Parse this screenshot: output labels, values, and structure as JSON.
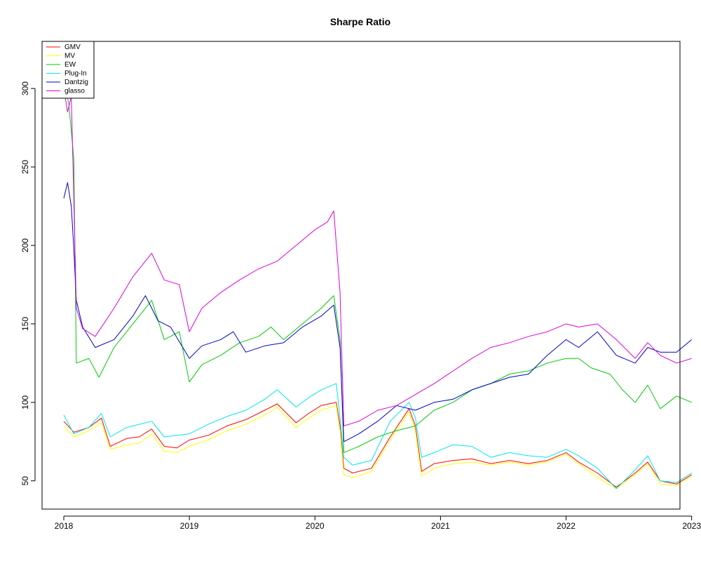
{
  "chart_data": {
    "type": "line",
    "title": "Sharpe Ratio",
    "xlabel": "",
    "ylabel": "",
    "xlim": [
      2018.0,
      2023.08
    ],
    "ylim": [
      32,
      330
    ],
    "x_ticks": [
      {
        "value": 2018,
        "label": "2018"
      },
      {
        "value": 2019,
        "label": "2019"
      },
      {
        "value": 2020,
        "label": "2020"
      },
      {
        "value": 2021,
        "label": "2021"
      },
      {
        "value": 2022,
        "label": "2022"
      },
      {
        "value": 2023,
        "label": "2023"
      }
    ],
    "y_ticks": [
      {
        "value": 50,
        "label": "50"
      },
      {
        "value": 100,
        "label": "100"
      },
      {
        "value": 150,
        "label": "150"
      },
      {
        "value": 200,
        "label": "200"
      },
      {
        "value": 250,
        "label": "250"
      },
      {
        "value": 300,
        "label": "300"
      }
    ],
    "grid": false,
    "legend": {
      "position": "top-left"
    },
    "series": [
      {
        "name": "GMV",
        "color": "#FF0000",
        "points": [
          [
            2018.0,
            88
          ],
          [
            2018.08,
            81
          ],
          [
            2018.2,
            84
          ],
          [
            2018.3,
            90
          ],
          [
            2018.37,
            72
          ],
          [
            2018.5,
            77
          ],
          [
            2018.6,
            78
          ],
          [
            2018.7,
            83
          ],
          [
            2018.8,
            72
          ],
          [
            2018.9,
            71
          ],
          [
            2019.0,
            76
          ],
          [
            2019.15,
            79
          ],
          [
            2019.3,
            85
          ],
          [
            2019.45,
            89
          ],
          [
            2019.6,
            95
          ],
          [
            2019.7,
            99
          ],
          [
            2019.85,
            87
          ],
          [
            2019.95,
            93
          ],
          [
            2020.05,
            98
          ],
          [
            2020.17,
            100
          ],
          [
            2020.2,
            85
          ],
          [
            2020.23,
            58
          ],
          [
            2020.3,
            55
          ],
          [
            2020.45,
            58
          ],
          [
            2020.6,
            78
          ],
          [
            2020.75,
            96
          ],
          [
            2020.8,
            85
          ],
          [
            2020.85,
            56
          ],
          [
            2020.95,
            61
          ],
          [
            2021.1,
            63
          ],
          [
            2021.25,
            64
          ],
          [
            2021.4,
            61
          ],
          [
            2021.55,
            63
          ],
          [
            2021.7,
            61
          ],
          [
            2021.85,
            63
          ],
          [
            2022.0,
            68
          ],
          [
            2022.1,
            62
          ],
          [
            2022.25,
            55
          ],
          [
            2022.4,
            46
          ],
          [
            2022.55,
            55
          ],
          [
            2022.65,
            62
          ],
          [
            2022.75,
            50
          ],
          [
            2022.88,
            48
          ],
          [
            2023.0,
            54
          ]
        ]
      },
      {
        "name": "MV",
        "color": "#FFFF00",
        "points": [
          [
            2018.0,
            85
          ],
          [
            2018.08,
            78
          ],
          [
            2018.2,
            82
          ],
          [
            2018.3,
            87
          ],
          [
            2018.37,
            70
          ],
          [
            2018.5,
            73
          ],
          [
            2018.6,
            74
          ],
          [
            2018.7,
            80
          ],
          [
            2018.8,
            69
          ],
          [
            2018.9,
            68
          ],
          [
            2019.0,
            72
          ],
          [
            2019.15,
            76
          ],
          [
            2019.3,
            82
          ],
          [
            2019.45,
            86
          ],
          [
            2019.6,
            92
          ],
          [
            2019.7,
            97
          ],
          [
            2019.85,
            84
          ],
          [
            2019.95,
            90
          ],
          [
            2020.05,
            95
          ],
          [
            2020.17,
            98
          ],
          [
            2020.2,
            82
          ],
          [
            2020.23,
            54
          ],
          [
            2020.3,
            52
          ],
          [
            2020.45,
            56
          ],
          [
            2020.6,
            76
          ],
          [
            2020.75,
            94
          ],
          [
            2020.8,
            82
          ],
          [
            2020.85,
            53
          ],
          [
            2020.95,
            58
          ],
          [
            2021.1,
            61
          ],
          [
            2021.25,
            62
          ],
          [
            2021.4,
            60
          ],
          [
            2021.55,
            62
          ],
          [
            2021.7,
            60
          ],
          [
            2021.85,
            62
          ],
          [
            2022.0,
            67
          ],
          [
            2022.1,
            61
          ],
          [
            2022.25,
            52
          ],
          [
            2022.4,
            45
          ],
          [
            2022.55,
            54
          ],
          [
            2022.65,
            61
          ],
          [
            2022.75,
            48
          ],
          [
            2022.88,
            47
          ],
          [
            2023.0,
            53
          ]
        ]
      },
      {
        "name": "EW",
        "color": "#00CC00",
        "points": [
          [
            2018.0,
            305
          ],
          [
            2018.04,
            290
          ],
          [
            2018.08,
            255
          ],
          [
            2018.1,
            125
          ],
          [
            2018.2,
            128
          ],
          [
            2018.28,
            116
          ],
          [
            2018.4,
            135
          ],
          [
            2018.55,
            150
          ],
          [
            2018.7,
            165
          ],
          [
            2018.8,
            140
          ],
          [
            2018.92,
            145
          ],
          [
            2019.0,
            113
          ],
          [
            2019.1,
            124
          ],
          [
            2019.25,
            130
          ],
          [
            2019.4,
            138
          ],
          [
            2019.55,
            142
          ],
          [
            2019.65,
            148
          ],
          [
            2019.75,
            140
          ],
          [
            2019.9,
            150
          ],
          [
            2020.05,
            160
          ],
          [
            2020.15,
            168
          ],
          [
            2020.2,
            140
          ],
          [
            2020.23,
            68
          ],
          [
            2020.35,
            72
          ],
          [
            2020.5,
            78
          ],
          [
            2020.65,
            82
          ],
          [
            2020.8,
            85
          ],
          [
            2020.95,
            95
          ],
          [
            2021.1,
            100
          ],
          [
            2021.25,
            108
          ],
          [
            2021.4,
            112
          ],
          [
            2021.55,
            118
          ],
          [
            2021.7,
            120
          ],
          [
            2021.85,
            125
          ],
          [
            2022.0,
            128
          ],
          [
            2022.1,
            128
          ],
          [
            2022.2,
            122
          ],
          [
            2022.35,
            118
          ],
          [
            2022.45,
            108
          ],
          [
            2022.55,
            100
          ],
          [
            2022.65,
            111
          ],
          [
            2022.75,
            96
          ],
          [
            2022.88,
            104
          ],
          [
            2023.0,
            100
          ]
        ]
      },
      {
        "name": "Plug-In",
        "color": "#00E5EE",
        "points": [
          [
            2018.0,
            92
          ],
          [
            2018.08,
            80
          ],
          [
            2018.2,
            84
          ],
          [
            2018.3,
            93
          ],
          [
            2018.37,
            78
          ],
          [
            2018.5,
            84
          ],
          [
            2018.6,
            86
          ],
          [
            2018.7,
            88
          ],
          [
            2018.8,
            78
          ],
          [
            2018.9,
            79
          ],
          [
            2019.0,
            80
          ],
          [
            2019.15,
            86
          ],
          [
            2019.3,
            91
          ],
          [
            2019.45,
            95
          ],
          [
            2019.6,
            102
          ],
          [
            2019.7,
            108
          ],
          [
            2019.85,
            97
          ],
          [
            2019.95,
            103
          ],
          [
            2020.05,
            108
          ],
          [
            2020.17,
            112
          ],
          [
            2020.2,
            90
          ],
          [
            2020.23,
            65
          ],
          [
            2020.3,
            60
          ],
          [
            2020.45,
            63
          ],
          [
            2020.6,
            88
          ],
          [
            2020.75,
            100
          ],
          [
            2020.8,
            90
          ],
          [
            2020.85,
            65
          ],
          [
            2020.95,
            68
          ],
          [
            2021.1,
            73
          ],
          [
            2021.25,
            72
          ],
          [
            2021.4,
            65
          ],
          [
            2021.55,
            68
          ],
          [
            2021.7,
            66
          ],
          [
            2021.85,
            65
          ],
          [
            2022.0,
            70
          ],
          [
            2022.1,
            66
          ],
          [
            2022.25,
            58
          ],
          [
            2022.4,
            45
          ],
          [
            2022.55,
            57
          ],
          [
            2022.65,
            66
          ],
          [
            2022.75,
            50
          ],
          [
            2022.88,
            49
          ],
          [
            2023.0,
            55
          ]
        ]
      },
      {
        "name": "Dantzig",
        "color": "#0000CD",
        "points": [
          [
            2018.0,
            230
          ],
          [
            2018.03,
            240
          ],
          [
            2018.06,
            225
          ],
          [
            2018.08,
            198
          ],
          [
            2018.1,
            165
          ],
          [
            2018.15,
            148
          ],
          [
            2018.25,
            135
          ],
          [
            2018.4,
            140
          ],
          [
            2018.55,
            155
          ],
          [
            2018.65,
            168
          ],
          [
            2018.75,
            152
          ],
          [
            2018.85,
            148
          ],
          [
            2019.0,
            128
          ],
          [
            2019.1,
            136
          ],
          [
            2019.25,
            140
          ],
          [
            2019.35,
            145
          ],
          [
            2019.45,
            132
          ],
          [
            2019.6,
            136
          ],
          [
            2019.75,
            138
          ],
          [
            2019.9,
            148
          ],
          [
            2020.05,
            155
          ],
          [
            2020.15,
            162
          ],
          [
            2020.2,
            135
          ],
          [
            2020.23,
            75
          ],
          [
            2020.35,
            80
          ],
          [
            2020.5,
            88
          ],
          [
            2020.65,
            98
          ],
          [
            2020.8,
            95
          ],
          [
            2020.95,
            100
          ],
          [
            2021.1,
            102
          ],
          [
            2021.25,
            108
          ],
          [
            2021.4,
            112
          ],
          [
            2021.55,
            116
          ],
          [
            2021.7,
            118
          ],
          [
            2021.85,
            130
          ],
          [
            2022.0,
            140
          ],
          [
            2022.1,
            135
          ],
          [
            2022.25,
            145
          ],
          [
            2022.4,
            130
          ],
          [
            2022.55,
            125
          ],
          [
            2022.65,
            135
          ],
          [
            2022.75,
            132
          ],
          [
            2022.88,
            132
          ],
          [
            2023.0,
            140
          ]
        ]
      },
      {
        "name": "glasso",
        "color": "#DD00DD",
        "points": [
          [
            2018.0,
            300
          ],
          [
            2018.03,
            285
          ],
          [
            2018.06,
            295
          ],
          [
            2018.08,
            230
          ],
          [
            2018.1,
            160
          ],
          [
            2018.15,
            147
          ],
          [
            2018.25,
            142
          ],
          [
            2018.4,
            160
          ],
          [
            2018.55,
            180
          ],
          [
            2018.7,
            195
          ],
          [
            2018.8,
            178
          ],
          [
            2018.92,
            175
          ],
          [
            2019.0,
            145
          ],
          [
            2019.1,
            160
          ],
          [
            2019.25,
            170
          ],
          [
            2019.4,
            178
          ],
          [
            2019.55,
            185
          ],
          [
            2019.7,
            190
          ],
          [
            2019.85,
            200
          ],
          [
            2020.0,
            210
          ],
          [
            2020.1,
            215
          ],
          [
            2020.15,
            222
          ],
          [
            2020.2,
            170
          ],
          [
            2020.23,
            85
          ],
          [
            2020.35,
            88
          ],
          [
            2020.5,
            95
          ],
          [
            2020.65,
            98
          ],
          [
            2020.8,
            105
          ],
          [
            2020.95,
            112
          ],
          [
            2021.1,
            120
          ],
          [
            2021.25,
            128
          ],
          [
            2021.4,
            135
          ],
          [
            2021.55,
            138
          ],
          [
            2021.7,
            142
          ],
          [
            2021.85,
            145
          ],
          [
            2022.0,
            150
          ],
          [
            2022.1,
            148
          ],
          [
            2022.25,
            150
          ],
          [
            2022.4,
            140
          ],
          [
            2022.55,
            128
          ],
          [
            2022.65,
            138
          ],
          [
            2022.75,
            130
          ],
          [
            2022.88,
            125
          ],
          [
            2023.0,
            128
          ]
        ]
      }
    ]
  }
}
